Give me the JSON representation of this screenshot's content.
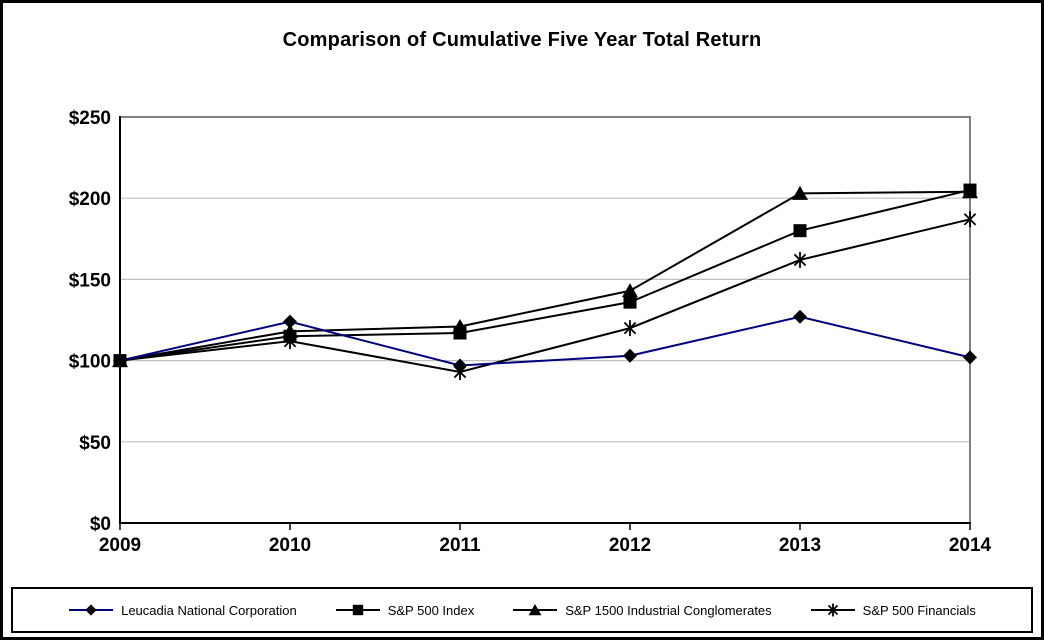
{
  "chart_data": {
    "type": "line",
    "title": "Comparison of Cumulative Five Year Total Return",
    "x": [
      "2009",
      "2010",
      "2011",
      "2012",
      "2013",
      "2014"
    ],
    "series": [
      {
        "name": "Leucadia National Corporation",
        "marker": "diamond",
        "color": "#000080",
        "values": [
          100,
          124,
          97,
          103,
          127,
          102
        ]
      },
      {
        "name": "S&P 500 Index",
        "marker": "square",
        "color": "#000000",
        "values": [
          100,
          115,
          117,
          136,
          180,
          205
        ]
      },
      {
        "name": "S&P 1500 Industrial Conglomerates",
        "marker": "triangle",
        "color": "#000000",
        "values": [
          100,
          118,
          121,
          143,
          203,
          204
        ]
      },
      {
        "name": "S&P 500 Financials",
        "marker": "asterisk",
        "color": "#000000",
        "values": [
          100,
          112,
          93,
          120,
          162,
          187
        ]
      }
    ],
    "y_ticks": [
      {
        "label": "$0",
        "value": 0
      },
      {
        "label": "$50",
        "value": 50
      },
      {
        "label": "$100",
        "value": 100
      },
      {
        "label": "$150",
        "value": 150
      },
      {
        "label": "$200",
        "value": 200
      },
      {
        "label": "$250",
        "value": 250
      }
    ],
    "ylim": [
      0,
      250
    ],
    "grid": "horizontal",
    "legend_position": "bottom",
    "marker_color": "#000000",
    "axis_color": "#000000",
    "plot_border_color": "#808080",
    "gridline_color": "#c0c0c0"
  }
}
